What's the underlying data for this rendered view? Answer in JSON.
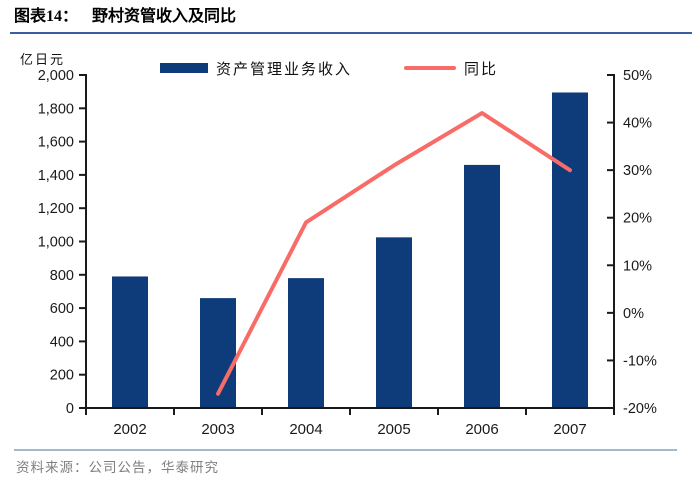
{
  "header": {
    "figure_label": "图表14：",
    "title": "野村资管收入及同比"
  },
  "chart_data": {
    "type": "bar+line combo",
    "categories": [
      "2002",
      "2003",
      "2004",
      "2005",
      "2006",
      "2007"
    ],
    "series": [
      {
        "name": "资产管理业务收入",
        "type": "bar",
        "axis": "left",
        "color": "#0e3c7b",
        "values": [
          790,
          660,
          780,
          1025,
          1460,
          1895
        ]
      },
      {
        "name": "同比",
        "type": "line",
        "axis": "right",
        "color": "#f96b66",
        "values": [
          null,
          -17,
          19,
          31,
          42,
          30
        ]
      }
    ],
    "left_axis": {
      "label": "亿日元",
      "min": 0,
      "max": 2000,
      "step": 200,
      "tick_labels": [
        "0",
        "200",
        "400",
        "600",
        "800",
        "1,000",
        "1,200",
        "1,400",
        "1,600",
        "1,800",
        "2,000"
      ]
    },
    "right_axis": {
      "min": -20,
      "max": 50,
      "step": 10,
      "tick_labels": [
        "-20%",
        "-10%",
        "0%",
        "10%",
        "20%",
        "30%",
        "40%",
        "50%"
      ]
    },
    "legend_position": "top",
    "grid": false
  },
  "footer": {
    "source": "资料来源：公司公告，华泰研究"
  },
  "colors": {
    "bar": "#0e3c7b",
    "line": "#f96b66",
    "title_rule": "#3a5f9f",
    "footer_rule": "#a4b9d0",
    "axis": "#1a1a1a",
    "source_text": "#7f7f7f"
  }
}
